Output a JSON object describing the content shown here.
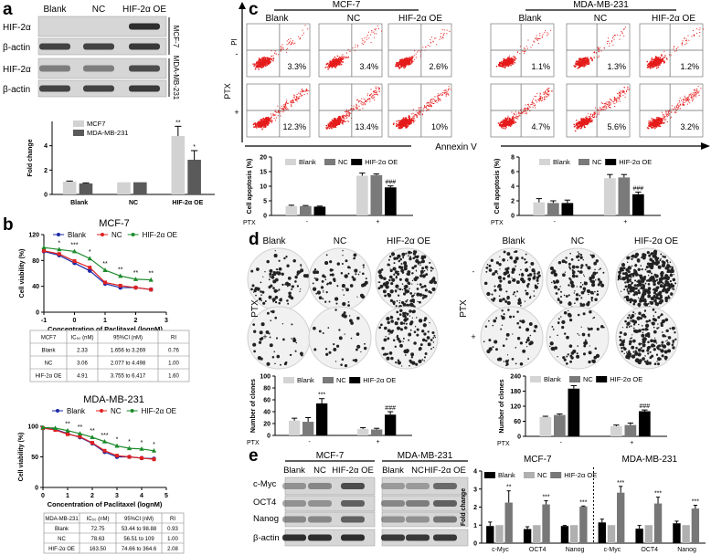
{
  "panel_labels": {
    "a": "a",
    "b": "b",
    "c": "c",
    "d": "d",
    "e": "e"
  },
  "a": {
    "lanes": [
      "Blank",
      "NC",
      "HIF-2α OE"
    ],
    "rows": [
      "HIF-2α",
      "β-actin",
      "HIF-2α",
      "β-actin"
    ],
    "cell_lines": [
      "MCF-7",
      "MDA-MB-231"
    ]
  },
  "b": {
    "titles": [
      "MCF-7",
      "MDA-MB-231"
    ],
    "table_mcf7": {
      "headers": [
        "MCF7",
        "IC₅₀ (nM)",
        "95%CI (nM)",
        "RI"
      ],
      "rows": [
        [
          "Blank",
          "2.33",
          "1.656 to 3.269",
          "0.76"
        ],
        [
          "NC",
          "3.06",
          "2.077 to 4.498",
          "1.00"
        ],
        [
          "HIF-2α OE",
          "4.91",
          "3.755 to 6.417",
          "1.60"
        ]
      ]
    },
    "table_mda": {
      "headers": [
        "MDA-MB-231",
        "IC₅₀ (nM)",
        "95%CI (nM)",
        "RI"
      ],
      "rows": [
        [
          "Blank",
          "72.75",
          "53.44 to 98.88",
          "0.93"
        ],
        [
          "NC",
          "78.63",
          "56.51 to 109",
          "1.00"
        ],
        [
          "HIF-2α OE",
          "163.50",
          "74.66 to 364.6",
          "2.08"
        ]
      ]
    }
  },
  "c": {
    "cell_lines": [
      "MCF-7",
      "MDA-MB-231"
    ],
    "columns": [
      "Blank",
      "NC",
      "HIF-2α OE"
    ],
    "ptx_label": "PTX",
    "ptx_rows": [
      "-",
      "+"
    ],
    "y_axis": "PI",
    "x_axis": "Annexin V",
    "mcf7_pct": [
      [
        "3.3%",
        "3.4%",
        "2.6%"
      ],
      [
        "12.3%",
        "13.4%",
        "10%"
      ]
    ],
    "mda_pct": [
      [
        "1.1%",
        "1.3%",
        "1.2%"
      ],
      [
        "4.7%",
        "5.6%",
        "3.2%"
      ]
    ]
  },
  "d": {
    "columns": [
      "Blank",
      "NC",
      "HIF-2α OE"
    ],
    "ptx_label": "PTX",
    "ptx_rows": [
      "-",
      "+"
    ]
  },
  "e": {
    "cell_lines": [
      "MCF-7",
      "MDA-MB-231"
    ],
    "lanes": [
      "Blank",
      "NC",
      "HIF-2α OE"
    ],
    "rows": [
      "c-Myc",
      "OCT4",
      "Nanog",
      "β-actin"
    ]
  },
  "chart_data": [
    {
      "id": "a-fold-change",
      "type": "bar",
      "categories": [
        "Blank",
        "NC",
        "HIF-2α OE"
      ],
      "ylabel": "Fold change",
      "ylim": [
        0,
        6
      ],
      "yticks": [
        "0",
        "2",
        "4"
      ],
      "series": [
        {
          "name": "MCF7",
          "values": [
            1.05,
            1.0,
            4.8
          ],
          "errors": [
            0.05,
            0,
            0.8
          ],
          "annotations": [
            "",
            "",
            "**"
          ],
          "color": "#d2d2d2"
        },
        {
          "name": "MDA-MB-231",
          "values": [
            0.9,
            1.0,
            2.85
          ],
          "errors": [
            0.05,
            0,
            0.75
          ],
          "annotations": [
            "",
            "",
            "*"
          ],
          "color": "#5a5a5a"
        }
      ]
    },
    {
      "id": "b-mcf7-viability",
      "type": "line",
      "title": "MCF-7",
      "xlabel": "Concentration of Paclitaxel (lognM)",
      "ylabel": "Cell viability (%)",
      "xlim": [
        -1,
        3
      ],
      "ylim": [
        0,
        120
      ],
      "xticks": [
        "-1",
        "0",
        "1",
        "2",
        "3"
      ],
      "yticks": [
        "0",
        "40",
        "80",
        "120"
      ],
      "series": [
        {
          "name": "Blank",
          "color": "#1c2aa8",
          "marker": "circle",
          "x": [
            -1,
            -0.5,
            0,
            0.5,
            1,
            1.5,
            2,
            2.5
          ],
          "y": [
            94,
            88,
            76,
            64,
            44,
            38,
            38,
            35
          ]
        },
        {
          "name": "NC",
          "color": "#e02020",
          "marker": "square",
          "x": [
            -1,
            -0.5,
            0,
            0.5,
            1,
            1.5,
            2,
            2.5
          ],
          "y": [
            95,
            90,
            79,
            69,
            46,
            41,
            38,
            35
          ]
        },
        {
          "name": "HIF-2α OE",
          "color": "#1d8a2b",
          "marker": "triangle",
          "x": [
            -1,
            -0.5,
            0,
            0.5,
            1,
            1.5,
            2,
            2.5
          ],
          "y": [
            100,
            97,
            94,
            83,
            65,
            56,
            51,
            50
          ],
          "annotations": [
            "",
            "*",
            "***",
            "*",
            "**",
            "**",
            "**",
            "**"
          ]
        }
      ]
    },
    {
      "id": "b-mda-viability",
      "type": "line",
      "title": "MDA-MB-231",
      "xlabel": "Concentration of Paclitaxel (lognM)",
      "ylabel": "Cell viability (%)",
      "xlim": [
        0,
        5
      ],
      "ylim": [
        0,
        100
      ],
      "xticks": [
        "0",
        "1",
        "2",
        "3",
        "4",
        "5"
      ],
      "yticks": [
        "0",
        "50",
        "100"
      ],
      "series": [
        {
          "name": "Blank",
          "color": "#1c2aa8",
          "marker": "circle",
          "x": [
            0,
            0.5,
            1,
            1.5,
            2,
            2.5,
            3,
            3.5,
            4,
            4.5
          ],
          "y": [
            97,
            95,
            88,
            82,
            72,
            58,
            50,
            50,
            48,
            47
          ]
        },
        {
          "name": "NC",
          "color": "#e02020",
          "marker": "square",
          "x": [
            0,
            0.5,
            1,
            1.5,
            2,
            2.5,
            3,
            3.5,
            4,
            4.5
          ],
          "y": [
            97,
            94,
            87,
            83,
            73,
            60,
            52,
            50,
            48,
            46
          ]
        },
        {
          "name": "HIF-2α OE",
          "color": "#1d8a2b",
          "marker": "triangle",
          "x": [
            0,
            0.5,
            1,
            1.5,
            2,
            2.5,
            3,
            3.5,
            4,
            4.5
          ],
          "y": [
            98,
            97,
            93,
            88,
            82,
            75,
            68,
            64,
            63,
            60
          ],
          "annotations": [
            "",
            "",
            "**",
            "**",
            "**",
            "***",
            "*",
            "*",
            "*",
            "*"
          ]
        }
      ]
    },
    {
      "id": "c-mcf7-apoptosis",
      "type": "bar",
      "xprefix": "PTX",
      "categories": [
        "-",
        "+"
      ],
      "ylabel": "Cell apoptosis (%)",
      "ylim": [
        0,
        20
      ],
      "yticks": [
        "0",
        "5",
        "10",
        "15",
        "20"
      ],
      "series": [
        {
          "name": "Blank",
          "values": [
            3.2,
            13.6
          ],
          "errors": [
            0.3,
            0.9
          ],
          "annotations": [
            "",
            ""
          ],
          "color": "#d4d4d4"
        },
        {
          "name": "NC",
          "values": [
            3.2,
            13.8
          ],
          "errors": [
            0.2,
            0.4
          ],
          "annotations": [
            "",
            ""
          ],
          "color": "#7a7a7a"
        },
        {
          "name": "HIF-2α OE",
          "values": [
            3.0,
            9.6
          ],
          "errors": [
            0.2,
            0.5
          ],
          "annotations": [
            "",
            "###"
          ],
          "color": "#000000"
        }
      ]
    },
    {
      "id": "c-mda-apoptosis",
      "type": "bar",
      "xprefix": "PTX",
      "categories": [
        "-",
        "+"
      ],
      "ylabel": "Cell apoptosis (%)",
      "ylim": [
        0,
        8
      ],
      "yticks": [
        "0",
        "2",
        "4",
        "6",
        "8"
      ],
      "series": [
        {
          "name": "Blank",
          "values": [
            1.8,
            5.1
          ],
          "errors": [
            0.5,
            0.5
          ],
          "annotations": [
            "",
            ""
          ],
          "color": "#d4d4d4"
        },
        {
          "name": "NC",
          "values": [
            1.7,
            5.2
          ],
          "errors": [
            0.3,
            0.4
          ],
          "annotations": [
            "",
            ""
          ],
          "color": "#7a7a7a"
        },
        {
          "name": "HIF-2α OE",
          "values": [
            1.7,
            2.9
          ],
          "errors": [
            0.4,
            0.3
          ],
          "annotations": [
            "",
            "###"
          ],
          "color": "#000000"
        }
      ]
    },
    {
      "id": "d-mcf7-clones",
      "type": "bar",
      "xprefix": "PTX",
      "categories": [
        "-",
        "+"
      ],
      "ylabel": "Number of clones",
      "ylim": [
        0,
        100
      ],
      "yticks": [
        "0",
        "20",
        "40",
        "60",
        "80",
        "100"
      ],
      "series": [
        {
          "name": "Blank",
          "values": [
            25,
            11
          ],
          "errors": [
            4,
            2
          ],
          "annotations": [
            "",
            ""
          ],
          "color": "#d4d4d4"
        },
        {
          "name": "NC",
          "values": [
            23,
            10
          ],
          "errors": [
            7,
            2
          ],
          "annotations": [
            "",
            ""
          ],
          "color": "#7a7a7a"
        },
        {
          "name": "HIF-2α OE",
          "values": [
            54,
            35
          ],
          "errors": [
            8,
            5
          ],
          "annotations": [
            "***",
            "###"
          ],
          "color": "#000000"
        }
      ]
    },
    {
      "id": "d-mda-clones",
      "type": "bar",
      "xprefix": "PTX",
      "categories": [
        "-",
        "+"
      ],
      "ylabel": "Number of clones",
      "ylim": [
        0,
        240
      ],
      "yticks": [
        "0",
        "60",
        "120",
        "180",
        "240"
      ],
      "series": [
        {
          "name": "Blank",
          "values": [
            77,
            40
          ],
          "errors": [
            3,
            5
          ],
          "annotations": [
            "",
            ""
          ],
          "color": "#d4d4d4"
        },
        {
          "name": "NC",
          "values": [
            85,
            45
          ],
          "errors": [
            4,
            8
          ],
          "annotations": [
            "",
            ""
          ],
          "color": "#7a7a7a"
        },
        {
          "name": "HIF-2α OE",
          "values": [
            190,
            100
          ],
          "errors": [
            12,
            5
          ],
          "annotations": [
            "***",
            "###"
          ],
          "color": "#000000"
        }
      ]
    },
    {
      "id": "e-stemness-fold-change",
      "type": "bar",
      "subtitles": [
        "MCF-7",
        "MDA-MB-231"
      ],
      "categories": [
        "c-Myc",
        "OCT4",
        "Nanog",
        "c-Myc",
        "OCT4",
        "Nanog"
      ],
      "ylabel": "Fold change",
      "ylim": [
        0,
        4
      ],
      "yticks": [
        "0",
        "1",
        "2",
        "3",
        "4"
      ],
      "series": [
        {
          "name": "Blank",
          "values": [
            0.95,
            0.78,
            0.95,
            1.15,
            0.8,
            1.1
          ],
          "errors": [
            0.22,
            0.13,
            0.03,
            0.18,
            0.18,
            0.12
          ],
          "annotations": [
            "",
            "",
            "",
            "",
            "",
            ""
          ],
          "color": "#000000"
        },
        {
          "name": "NC",
          "values": [
            1,
            1,
            1,
            1,
            1,
            1
          ],
          "errors": [
            0,
            0,
            0,
            0,
            0,
            0
          ],
          "annotations": [
            "",
            "",
            "",
            "",
            "",
            ""
          ],
          "color": "#b0b0b0"
        },
        {
          "name": "HIF-2α OE",
          "values": [
            2.25,
            2.15,
            2.03,
            2.8,
            2.2,
            1.92
          ],
          "errors": [
            0.65,
            0.2,
            0.03,
            0.35,
            0.35,
            0.18
          ],
          "annotations": [
            "**",
            "***",
            "***",
            "***",
            "***",
            "***"
          ],
          "color": "#777777"
        }
      ]
    }
  ]
}
